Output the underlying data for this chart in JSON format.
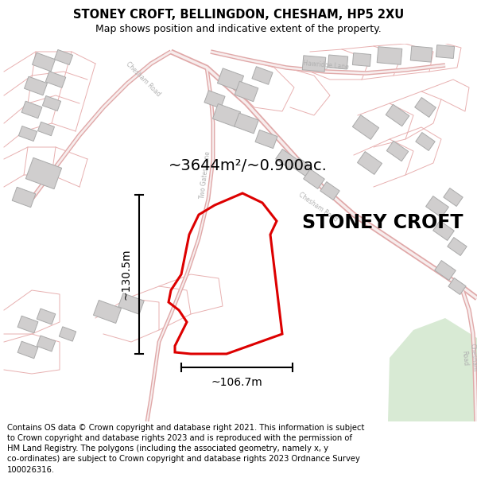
{
  "title": "STONEY CROFT, BELLINGDON, CHESHAM, HP5 2XU",
  "subtitle": "Map shows position and indicative extent of the property.",
  "property_label": "STONEY CROFT",
  "area_label": "~3644m²/~0.900ac.",
  "dim_height_label": "~130.5m",
  "dim_width_label": "~106.7m",
  "footer": "Contains OS data © Crown copyright and database right 2021. This information is subject to Crown copyright and database rights 2023 and is reproduced with the permission of HM Land Registry. The polygons (including the associated geometry, namely x, y co-ordinates) are subject to Crown copyright and database rights 2023 Ordnance Survey 100026316.",
  "map_bg": "#f7f4f4",
  "road_line_color": "#e8b0b0",
  "road_fill_color": "#f0d8d8",
  "building_fill": "#d0cece",
  "building_edge": "#aaaaaa",
  "property_color": "#dd0000",
  "green_fill": "#d8ead4",
  "title_fontsize": 10.5,
  "subtitle_fontsize": 9,
  "area_fontsize": 14,
  "property_label_fontsize": 17,
  "dim_fontsize": 10,
  "footer_fontsize": 7.2,
  "fig_width": 6.0,
  "fig_height": 6.25,
  "map_road_thin": 0.8,
  "map_road_thick": 1.5
}
